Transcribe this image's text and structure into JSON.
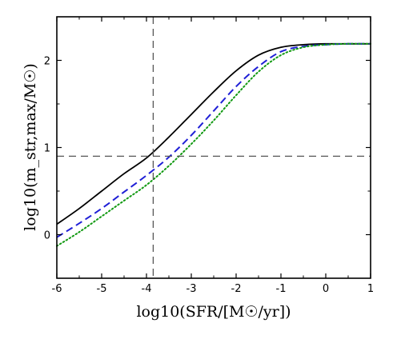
{
  "chart_data": {
    "type": "line",
    "xlabel": "log10(SFR/[M☉/yr])",
    "ylabel": "log10(m_str,max/M☉)",
    "xlim": [
      -6,
      1
    ],
    "ylim": [
      -0.5,
      2.5
    ],
    "grid": false,
    "xticks": [
      "-6",
      "-5",
      "-4",
      "-3",
      "-2",
      "-1",
      "0",
      "1"
    ],
    "yticks": [
      "0",
      "1",
      "2"
    ],
    "reference_lines": {
      "vertical_x": -3.85,
      "horizontal_y": 0.9
    },
    "series": [
      {
        "style": "solid",
        "color": "#000000",
        "x": [
          -6,
          -5.5,
          -5,
          -4.5,
          -4,
          -3.5,
          -3,
          -2.5,
          -2,
          -1.5,
          -1,
          -0.5,
          0,
          0.5,
          1
        ],
        "y": [
          0.12,
          0.3,
          0.5,
          0.7,
          0.88,
          1.12,
          1.38,
          1.64,
          1.88,
          2.06,
          2.15,
          2.18,
          2.19,
          2.19,
          2.19
        ]
      },
      {
        "style": "dashed",
        "color": "#1f1fd6",
        "x": [
          -6,
          -5.5,
          -5,
          -4.5,
          -4,
          -3.5,
          -3,
          -2.5,
          -2,
          -1.5,
          -1,
          -0.5,
          0,
          0.5,
          1
        ],
        "y": [
          -0.03,
          0.13,
          0.3,
          0.49,
          0.68,
          0.89,
          1.14,
          1.42,
          1.7,
          1.93,
          2.1,
          2.16,
          2.18,
          2.19,
          2.19
        ]
      },
      {
        "style": "dotted",
        "color": "#119911",
        "x": [
          -6,
          -5.5,
          -5,
          -4.5,
          -4,
          -3.5,
          -3,
          -2.5,
          -2,
          -1.5,
          -1,
          -0.5,
          0,
          0.5,
          1
        ],
        "y": [
          -0.13,
          0.03,
          0.21,
          0.39,
          0.57,
          0.79,
          1.04,
          1.31,
          1.6,
          1.87,
          2.06,
          2.15,
          2.18,
          2.19,
          2.19
        ]
      }
    ]
  }
}
